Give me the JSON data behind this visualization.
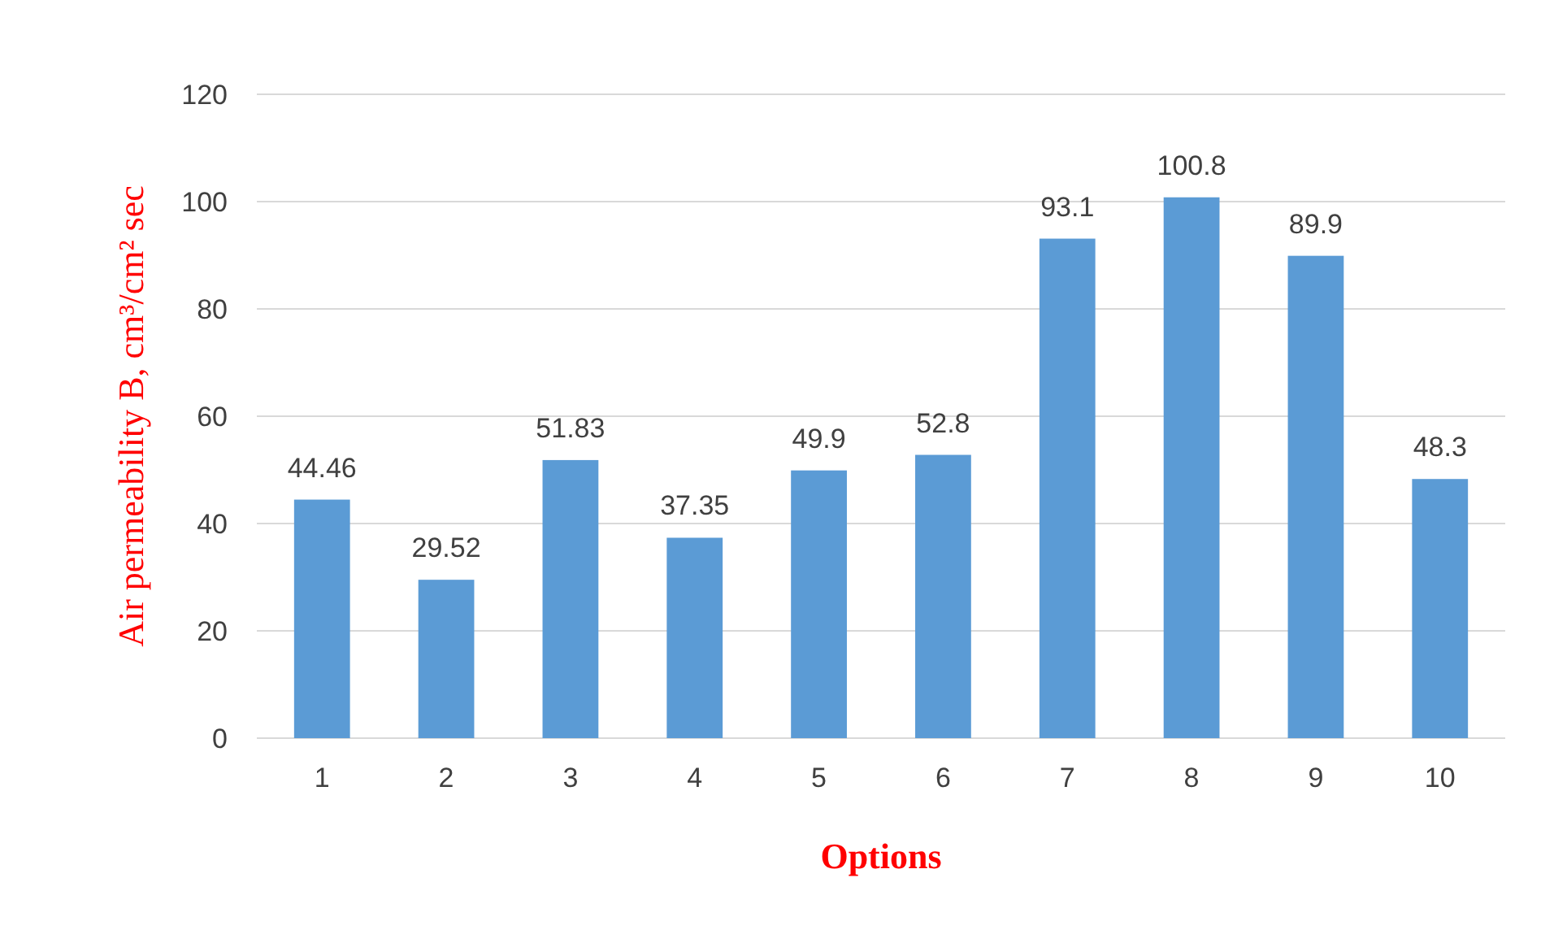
{
  "chart_data": {
    "type": "bar",
    "xlabel": "Options",
    "ylabel": "Air permeability B, cm³/cm² sec",
    "categories": [
      "1",
      "2",
      "3",
      "4",
      "5",
      "6",
      "7",
      "8",
      "9",
      "10"
    ],
    "values": [
      44.46,
      29.52,
      51.83,
      37.35,
      49.9,
      52.8,
      93.1,
      100.8,
      89.9,
      48.3
    ],
    "color": "#5b9bd5",
    "ylim": [
      0,
      120
    ],
    "yticks": [
      0,
      20,
      40,
      60,
      80,
      100,
      120
    ],
    "grid": "y",
    "data_labels": true
  }
}
